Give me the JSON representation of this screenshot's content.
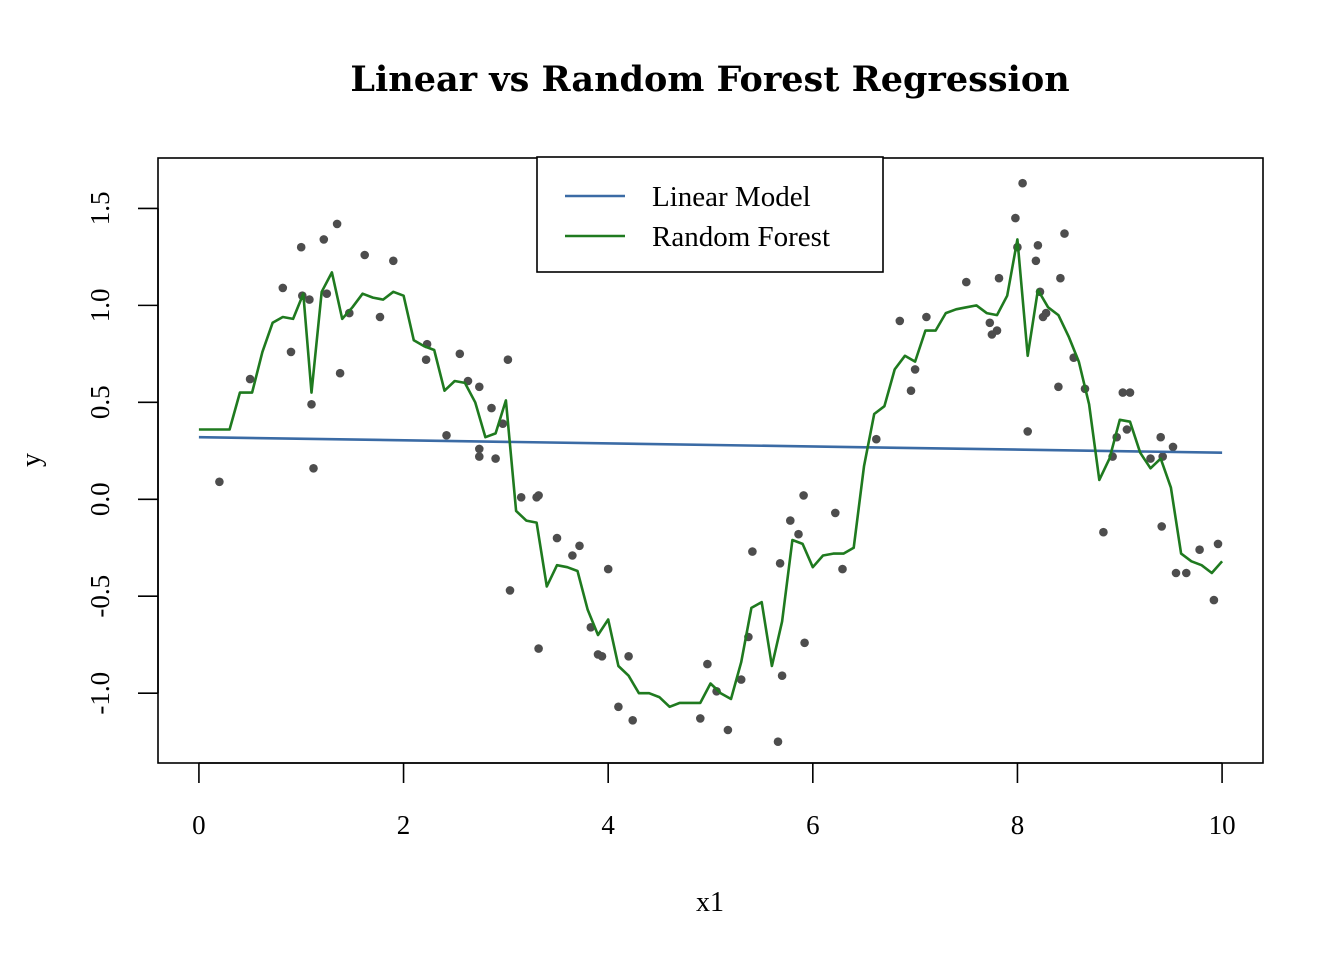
{
  "chart_data": {
    "type": "scatter",
    "title": "Linear vs Random Forest Regression",
    "xlabel": "x1",
    "ylabel": "y",
    "xlim": [
      -0.4,
      10.4
    ],
    "ylim": [
      -1.36,
      1.76
    ],
    "xticks": [
      0,
      2,
      4,
      6,
      8,
      10
    ],
    "yticks": [
      -1.0,
      -0.5,
      0.0,
      0.5,
      1.0,
      1.5
    ],
    "xtick_labels": [
      "0",
      "2",
      "4",
      "6",
      "8",
      "10"
    ],
    "ytick_labels": [
      "-1.0",
      "-0.5",
      "0.0",
      "0.5",
      "1.0",
      "1.5"
    ],
    "grid": false,
    "legend": {
      "position": "top-center",
      "entries": [
        "Linear Model",
        "Random Forest"
      ]
    },
    "colors": {
      "points": "#4d4d4d",
      "linear": "#3b6ba5",
      "forest": "#1f7a1f"
    },
    "points": [
      [
        0.2,
        0.09
      ],
      [
        0.5,
        0.62
      ],
      [
        0.82,
        1.09
      ],
      [
        0.9,
        0.76
      ],
      [
        1.0,
        1.3
      ],
      [
        1.01,
        1.05
      ],
      [
        1.08,
        1.03
      ],
      [
        1.1,
        0.49
      ],
      [
        1.12,
        0.16
      ],
      [
        1.22,
        1.34
      ],
      [
        1.25,
        1.06
      ],
      [
        1.35,
        1.42
      ],
      [
        1.38,
        0.65
      ],
      [
        1.47,
        0.96
      ],
      [
        1.62,
        1.26
      ],
      [
        1.77,
        0.94
      ],
      [
        1.9,
        1.23
      ],
      [
        2.23,
        0.8
      ],
      [
        2.22,
        0.72
      ],
      [
        2.42,
        0.33
      ],
      [
        2.55,
        0.75
      ],
      [
        2.63,
        0.61
      ],
      [
        2.74,
        0.58
      ],
      [
        2.74,
        0.26
      ],
      [
        2.74,
        0.22
      ],
      [
        2.86,
        0.47
      ],
      [
        2.9,
        0.21
      ],
      [
        2.97,
        0.39
      ],
      [
        3.02,
        0.72
      ],
      [
        3.04,
        -0.47
      ],
      [
        3.15,
        0.01
      ],
      [
        3.3,
        0.01
      ],
      [
        3.32,
        0.02
      ],
      [
        3.32,
        -0.77
      ],
      [
        3.5,
        -0.2
      ],
      [
        3.65,
        -0.29
      ],
      [
        3.72,
        -0.24
      ],
      [
        3.83,
        -0.66
      ],
      [
        3.9,
        -0.8
      ],
      [
        3.94,
        -0.81
      ],
      [
        4.0,
        -0.36
      ],
      [
        4.1,
        -1.07
      ],
      [
        4.2,
        -0.81
      ],
      [
        4.24,
        -1.14
      ],
      [
        4.9,
        -1.13
      ],
      [
        4.97,
        -0.85
      ],
      [
        5.06,
        -0.99
      ],
      [
        5.17,
        -1.19
      ],
      [
        5.3,
        -0.93
      ],
      [
        5.37,
        -0.71
      ],
      [
        5.41,
        -0.27
      ],
      [
        5.66,
        -1.25
      ],
      [
        5.68,
        -0.33
      ],
      [
        5.7,
        -0.91
      ],
      [
        5.78,
        -0.11
      ],
      [
        5.86,
        -0.18
      ],
      [
        5.91,
        0.02
      ],
      [
        5.92,
        -0.74
      ],
      [
        6.22,
        -0.07
      ],
      [
        6.29,
        -0.36
      ],
      [
        6.62,
        0.31
      ],
      [
        6.85,
        0.92
      ],
      [
        6.96,
        0.56
      ],
      [
        7.0,
        0.67
      ],
      [
        7.11,
        0.94
      ],
      [
        7.5,
        1.12
      ],
      [
        7.73,
        0.91
      ],
      [
        7.75,
        0.85
      ],
      [
        7.8,
        0.87
      ],
      [
        7.82,
        1.14
      ],
      [
        7.98,
        1.45
      ],
      [
        8.0,
        1.3
      ],
      [
        8.05,
        1.63
      ],
      [
        8.1,
        0.35
      ],
      [
        8.18,
        1.23
      ],
      [
        8.2,
        1.31
      ],
      [
        8.22,
        1.07
      ],
      [
        8.25,
        0.94
      ],
      [
        8.28,
        0.96
      ],
      [
        8.4,
        0.58
      ],
      [
        8.42,
        1.14
      ],
      [
        8.46,
        1.37
      ],
      [
        8.55,
        0.73
      ],
      [
        8.66,
        0.57
      ],
      [
        8.84,
        -0.17
      ],
      [
        8.93,
        0.22
      ],
      [
        8.97,
        0.32
      ],
      [
        9.03,
        0.55
      ],
      [
        9.07,
        0.36
      ],
      [
        9.1,
        0.55
      ],
      [
        9.3,
        0.21
      ],
      [
        9.4,
        0.32
      ],
      [
        9.41,
        -0.14
      ],
      [
        9.42,
        0.22
      ],
      [
        9.52,
        0.27
      ],
      [
        9.55,
        -0.38
      ],
      [
        9.65,
        -0.38
      ],
      [
        9.78,
        -0.26
      ],
      [
        9.92,
        -0.52
      ],
      [
        9.96,
        -0.23
      ]
    ],
    "series": [
      {
        "name": "Linear Model",
        "x": [
          0,
          10
        ],
        "y": [
          0.32,
          0.24
        ]
      },
      {
        "name": "Random Forest",
        "x": [
          0,
          0.3,
          0.4,
          0.52,
          0.62,
          0.72,
          0.82,
          0.92,
          1.02,
          1.1,
          1.2,
          1.3,
          1.4,
          1.5,
          1.6,
          1.7,
          1.8,
          1.9,
          2.0,
          2.1,
          2.2,
          2.3,
          2.4,
          2.5,
          2.6,
          2.7,
          2.8,
          2.9,
          3.0,
          3.1,
          3.2,
          3.3,
          3.4,
          3.5,
          3.6,
          3.7,
          3.8,
          3.9,
          4.0,
          4.1,
          4.2,
          4.3,
          4.4,
          4.5,
          4.6,
          4.7,
          4.8,
          4.9,
          5.0,
          5.1,
          5.2,
          5.3,
          5.4,
          5.5,
          5.6,
          5.7,
          5.8,
          5.9,
          6.0,
          6.1,
          6.2,
          6.3,
          6.4,
          6.5,
          6.6,
          6.7,
          6.8,
          6.9,
          7.0,
          7.1,
          7.2,
          7.3,
          7.4,
          7.5,
          7.6,
          7.7,
          7.8,
          7.9,
          8.0,
          8.1,
          8.2,
          8.3,
          8.4,
          8.5,
          8.6,
          8.7,
          8.8,
          8.9,
          9.0,
          9.1,
          9.2,
          9.3,
          9.4,
          9.5,
          9.6,
          9.7,
          9.8,
          9.9,
          10.0
        ],
        "y": [
          0.36,
          0.36,
          0.55,
          0.55,
          0.76,
          0.91,
          0.94,
          0.93,
          1.06,
          0.55,
          1.07,
          1.17,
          0.93,
          0.99,
          1.06,
          1.04,
          1.03,
          1.07,
          1.05,
          0.82,
          0.79,
          0.77,
          0.56,
          0.61,
          0.6,
          0.5,
          0.32,
          0.34,
          0.51,
          -0.06,
          -0.11,
          -0.12,
          -0.45,
          -0.34,
          -0.35,
          -0.37,
          -0.57,
          -0.7,
          -0.62,
          -0.86,
          -0.91,
          -1.0,
          -1.0,
          -1.02,
          -1.07,
          -1.05,
          -1.05,
          -1.05,
          -0.95,
          -1.0,
          -1.03,
          -0.84,
          -0.56,
          -0.53,
          -0.86,
          -0.63,
          -0.21,
          -0.23,
          -0.35,
          -0.29,
          -0.28,
          -0.28,
          -0.25,
          0.17,
          0.44,
          0.48,
          0.67,
          0.74,
          0.71,
          0.87,
          0.87,
          0.96,
          0.98,
          0.99,
          1.0,
          0.96,
          0.95,
          1.05,
          1.34,
          0.74,
          1.08,
          0.99,
          0.95,
          0.84,
          0.71,
          0.49,
          0.1,
          0.21,
          0.41,
          0.4,
          0.24,
          0.16,
          0.21,
          0.06,
          -0.28,
          -0.32,
          -0.34,
          -0.38,
          -0.32
        ]
      }
    ]
  }
}
